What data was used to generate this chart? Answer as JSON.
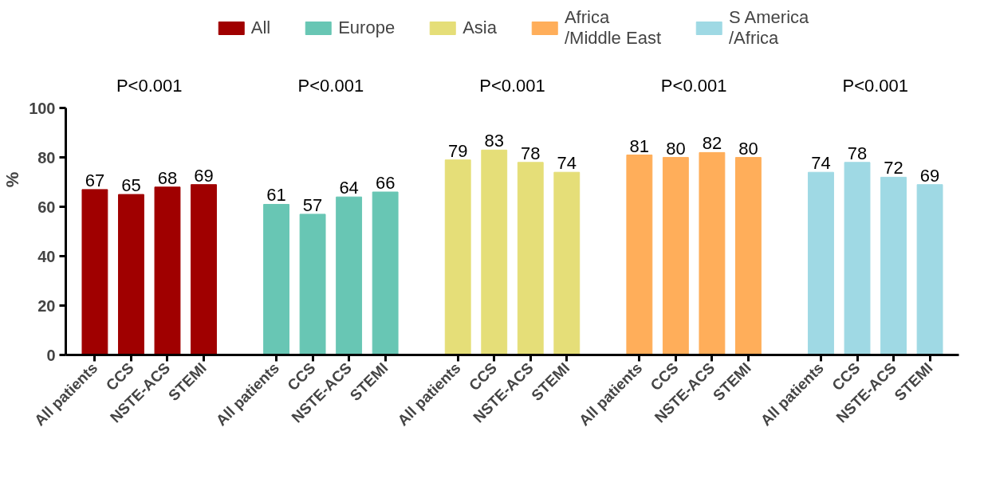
{
  "chart_data": {
    "type": "bar",
    "ylabel": "%",
    "ylim": [
      0,
      100
    ],
    "yticks": [
      0,
      20,
      40,
      60,
      80,
      100
    ],
    "grid": false,
    "legend": "top",
    "data_labels": true,
    "categories": [
      "All patients",
      "CCS",
      "NSTE-ACS",
      "STEMI",
      "All patients",
      "CCS",
      "NSTE-ACS",
      "STEMI",
      "All patients",
      "CCS",
      "NSTE-ACS",
      "STEMI",
      "All patients",
      "CCS",
      "NSTE-ACS",
      "STEMI",
      "All patients",
      "CCS",
      "NSTE-ACS",
      "STEMI"
    ],
    "series": [
      {
        "name": "All",
        "color": "#a00000",
        "values": [
          67,
          65,
          68,
          69,
          null,
          null,
          null,
          null,
          null,
          null,
          null,
          null,
          null,
          null,
          null,
          null,
          null,
          null,
          null,
          null
        ]
      },
      {
        "name": "Europe",
        "color": "#68c6b4",
        "values": [
          null,
          null,
          null,
          null,
          61,
          57,
          64,
          66,
          null,
          null,
          null,
          null,
          null,
          null,
          null,
          null,
          null,
          null,
          null,
          null
        ]
      },
      {
        "name": "Asia",
        "color": "#e5de78",
        "values": [
          null,
          null,
          null,
          null,
          null,
          null,
          null,
          null,
          79,
          83,
          78,
          74,
          null,
          null,
          null,
          null,
          null,
          null,
          null,
          null
        ]
      },
      {
        "name": "Africa\n/Middle East",
        "color": "#ffae5a",
        "values": [
          null,
          null,
          null,
          null,
          null,
          null,
          null,
          null,
          null,
          null,
          null,
          null,
          81,
          80,
          82,
          80,
          null,
          null,
          null,
          null
        ]
      },
      {
        "name": "S America\n/Africa",
        "color": "#9fd9e4",
        "values": [
          null,
          null,
          null,
          null,
          null,
          null,
          null,
          null,
          null,
          null,
          null,
          null,
          null,
          null,
          null,
          null,
          74,
          78,
          72,
          69
        ]
      }
    ],
    "annotations": [
      "P<0.001",
      "P<0.001",
      "P<0.001",
      "P<0.001",
      "P<0.001"
    ]
  }
}
